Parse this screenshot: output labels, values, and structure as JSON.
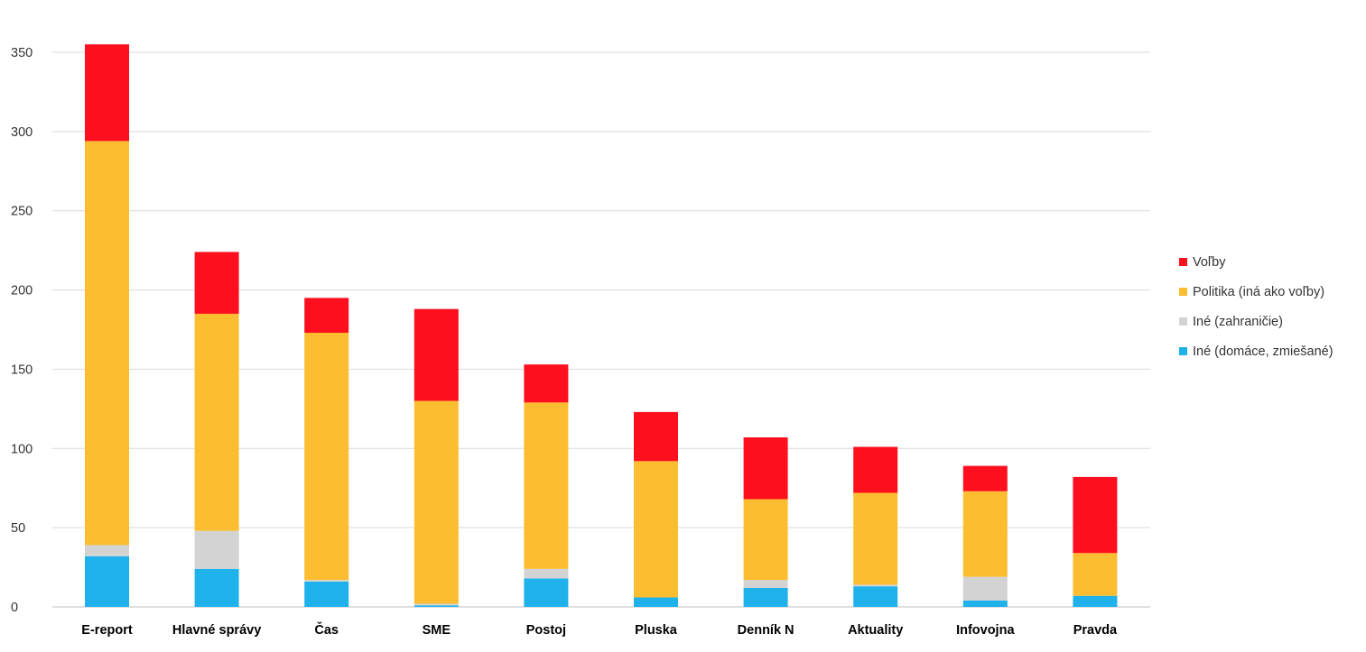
{
  "chart_data": {
    "type": "bar",
    "stacked": true,
    "categories": [
      "E-report",
      "Hlavné správy",
      "Čas",
      "SME",
      "Postoj",
      "Pluska",
      "Denník N",
      "Aktuality",
      "Infovojna",
      "Pravda"
    ],
    "series": [
      {
        "name": "Iné (domáce, zmiešané)",
        "color": "#1fb1ea",
        "values": [
          32,
          24,
          16,
          1,
          18,
          6,
          12,
          13,
          4,
          7
        ]
      },
      {
        "name": "Iné (zahraničie)",
        "color": "#d3d3d3",
        "values": [
          7,
          24,
          1,
          1,
          6,
          0,
          5,
          1,
          15,
          0
        ]
      },
      {
        "name": "Politika (iná ako voľby)",
        "color": "#fcbd30",
        "values": [
          255,
          137,
          156,
          128,
          105,
          86,
          51,
          58,
          54,
          27
        ]
      },
      {
        "name": "Voľby",
        "color": "#fd0f1e",
        "values": [
          61,
          39,
          22,
          58,
          24,
          31,
          39,
          29,
          16,
          48
        ]
      }
    ],
    "yticks": [
      0,
      50,
      100,
      150,
      200,
      250,
      300,
      350
    ],
    "ylim": [
      0,
      350
    ],
    "grid": true,
    "legend": "right",
    "legend_order": [
      "Voľby",
      "Politika (iná ako voľby)",
      "Iné (zahraničie)",
      "Iné (domáce, zmiešané)"
    ]
  }
}
